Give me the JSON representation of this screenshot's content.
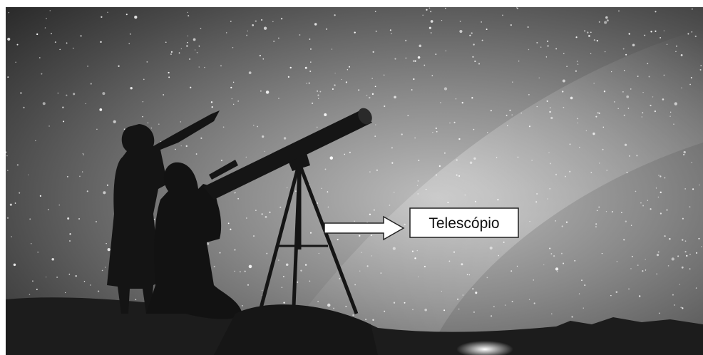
{
  "annotation": {
    "label": "Telescópio"
  }
}
